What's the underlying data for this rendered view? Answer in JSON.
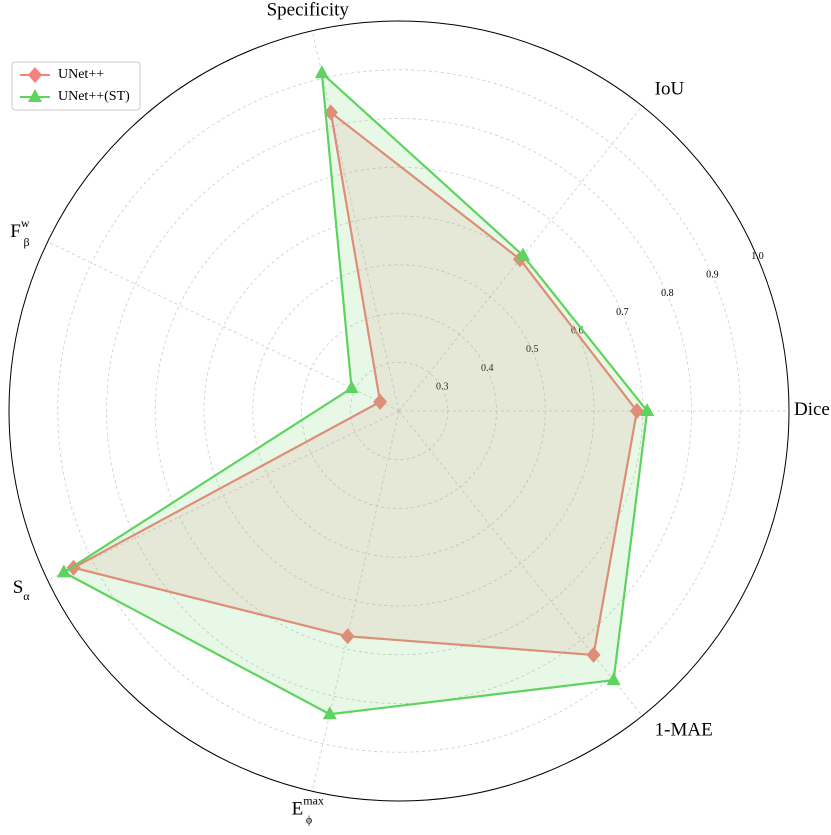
{
  "chart_data": {
    "type": "radar",
    "categories": [
      {
        "text": "Dice"
      },
      {
        "text": "IoU"
      },
      {
        "text": "Specificity"
      },
      {
        "text": "F",
        "sub": "β",
        "sup": "w"
      },
      {
        "text": "S",
        "sub": "α"
      },
      {
        "text": "E",
        "sub": "ϕ",
        "sup": "max"
      },
      {
        "text": "1-MAE"
      }
    ],
    "series": [
      {
        "name": "UNet++",
        "color": "#f4837d",
        "marker": "diamond",
        "values": [
          0.688,
          0.598,
          0.828,
          0.243,
          0.941,
          0.674,
          0.84
        ]
      },
      {
        "name": "UNet++(ST)",
        "color": "#5fd35f",
        "marker": "triangle",
        "values": [
          0.709,
          0.608,
          0.911,
          0.308,
          0.963,
          0.838,
          0.906
        ]
      }
    ],
    "ylim": [
      0.2,
      1.0
    ],
    "yticks": [
      0.3,
      0.4,
      0.5,
      0.6,
      0.7,
      0.8,
      0.9,
      {
        "value": 1.0,
        "label": "1.0"
      }
    ],
    "grid": true,
    "legend": "upper-left"
  }
}
